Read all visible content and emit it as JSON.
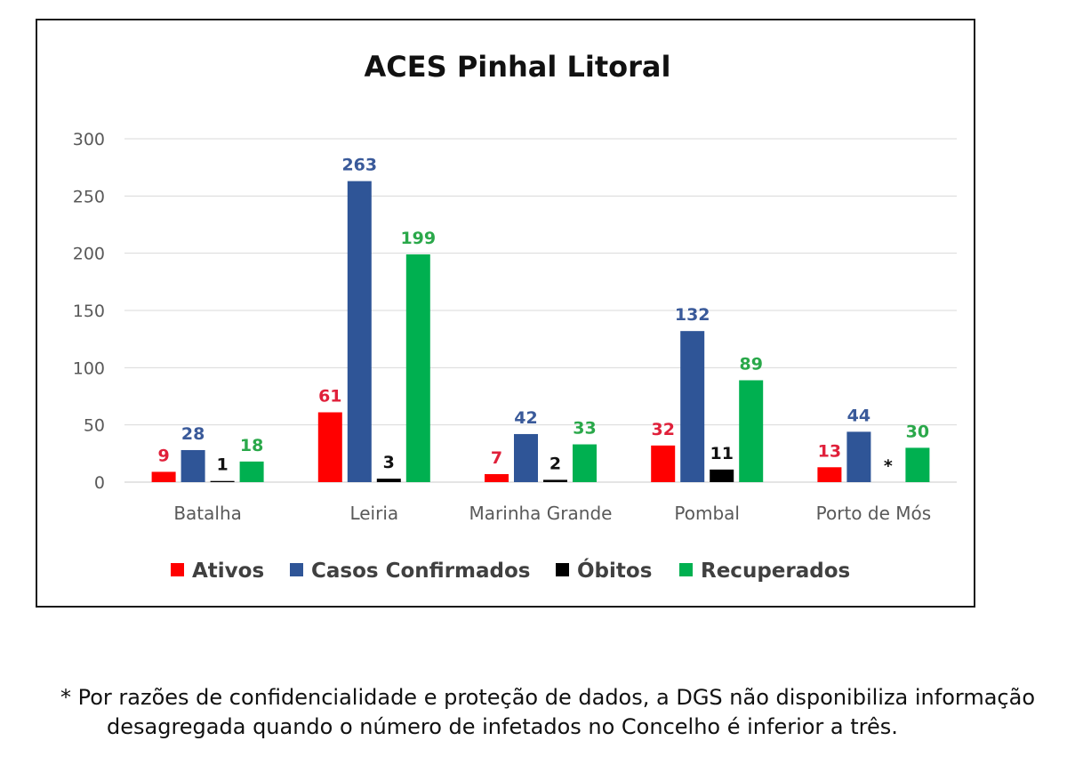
{
  "chart_data": {
    "type": "bar",
    "title": "ACES Pinhal Litoral",
    "categories": [
      "Batalha",
      "Leiria",
      "Marinha Grande",
      "Pombal",
      "Porto de Mós"
    ],
    "series": [
      {
        "name": "Ativos",
        "color": "#ff0000",
        "values": [
          9,
          61,
          7,
          32,
          13
        ],
        "labels": [
          "9",
          "61",
          "7",
          "32",
          "13"
        ]
      },
      {
        "name": "Casos Confirmados",
        "color": "#2f5597",
        "values": [
          28,
          263,
          42,
          132,
          44
        ],
        "labels": [
          "28",
          "263",
          "42",
          "132",
          "44"
        ]
      },
      {
        "name": "Óbitos",
        "color": "#000000",
        "values": [
          1,
          3,
          2,
          11,
          null
        ],
        "labels": [
          "1",
          "3",
          "2",
          "11",
          "*"
        ]
      },
      {
        "name": "Recuperados",
        "color": "#00b050",
        "values": [
          18,
          199,
          33,
          89,
          30
        ],
        "labels": [
          "18",
          "199",
          "33",
          "89",
          "30"
        ]
      }
    ],
    "label_colors": [
      "#e0203a",
      "#3a5a9a",
      "#111111",
      "#2aa84a"
    ],
    "ylim": [
      0,
      300
    ],
    "yticks": [
      0,
      50,
      100,
      150,
      200,
      250,
      300
    ],
    "grid": true,
    "legend_position": "bottom"
  },
  "footnote": {
    "line1": "* Por razões de confidencialidade e proteção de dados, a DGS não disponibiliza informação",
    "line2": "desagregada quando o número de infetados no Concelho é inferior a três."
  }
}
